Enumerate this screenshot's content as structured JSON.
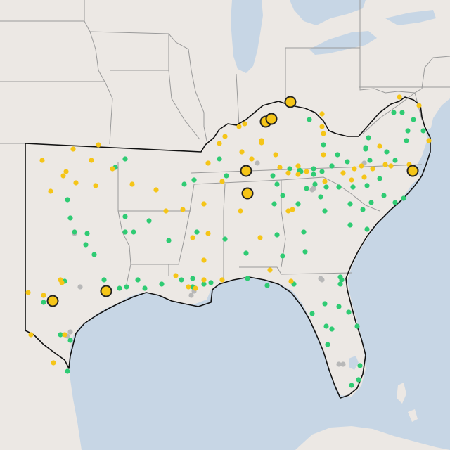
{
  "map": {
    "colors": {
      "land": "#ece8e4",
      "water": "#c7d6e5",
      "state_border": "#9a9a9a",
      "region_outline": "#111111",
      "dot_green": "#2fcb73",
      "dot_yellow": "#f5c518",
      "dot_gray": "#b8b8b8",
      "marker_yellow": "#f5c518",
      "marker_stroke": "#222222"
    },
    "legend": []
  }
}
